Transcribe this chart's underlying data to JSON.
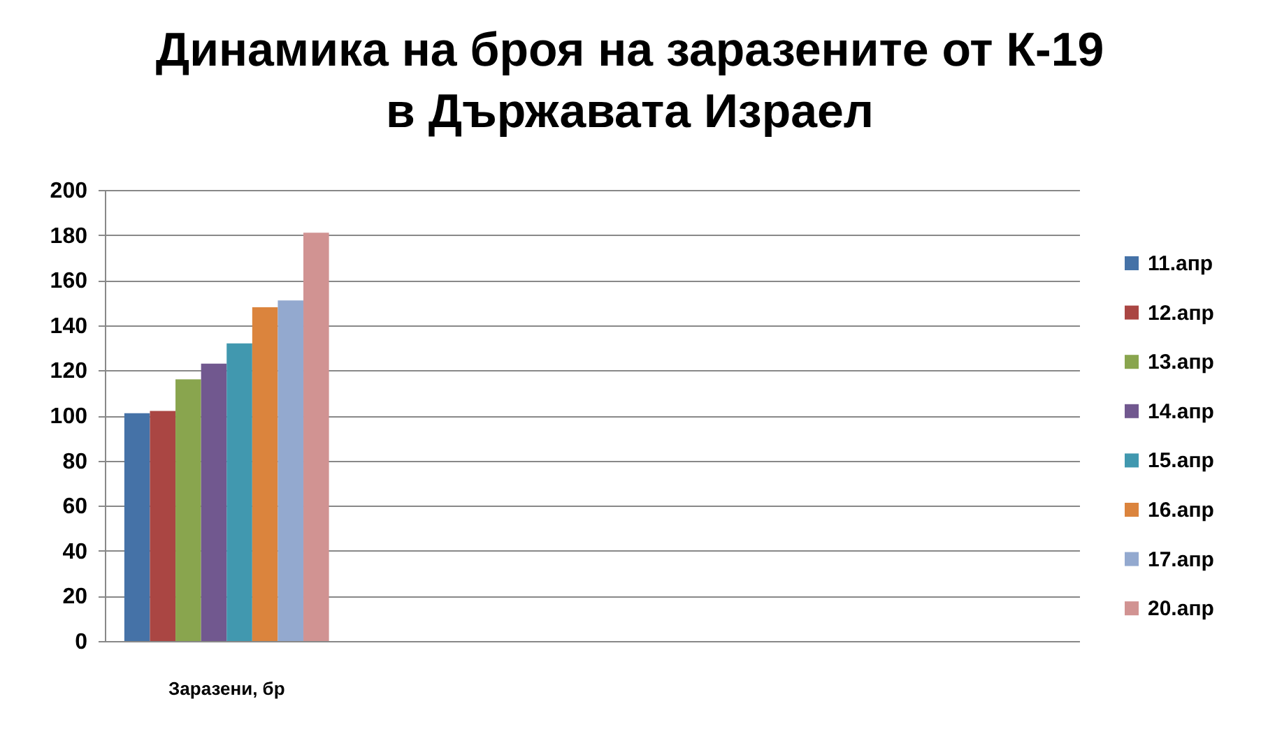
{
  "chart_data": {
    "type": "bar",
    "title": "Динамика на броя на заразените от К-19 в Държавата Израел",
    "categories": [
      "Заразени, бр",
      null,
      null,
      null
    ],
    "series": [
      {
        "name": "11.апр",
        "color": "#4572a7",
        "values": [
          101,
          null,
          null,
          null
        ]
      },
      {
        "name": "12.апр",
        "color": "#aa4643",
        "values": [
          102,
          null,
          null,
          null
        ]
      },
      {
        "name": "13.апр",
        "color": "#89a54e",
        "values": [
          116,
          null,
          null,
          null
        ]
      },
      {
        "name": "14.апр",
        "color": "#71588f",
        "values": [
          123,
          null,
          null,
          null
        ]
      },
      {
        "name": "15.апр",
        "color": "#4198af",
        "values": [
          132,
          null,
          null,
          null
        ]
      },
      {
        "name": "16.апр",
        "color": "#db843d",
        "values": [
          148,
          null,
          null,
          null
        ]
      },
      {
        "name": "17.апр",
        "color": "#93a9cf",
        "values": [
          151,
          null,
          null,
          null
        ]
      },
      {
        "name": "20.апр",
        "color": "#d19392",
        "values": [
          181,
          null,
          null,
          null
        ]
      }
    ],
    "ylim": [
      0,
      200
    ],
    "yticks": [
      0,
      20,
      40,
      60,
      80,
      100,
      120,
      140,
      160,
      180,
      200
    ],
    "grid": "y",
    "legend": "right"
  }
}
